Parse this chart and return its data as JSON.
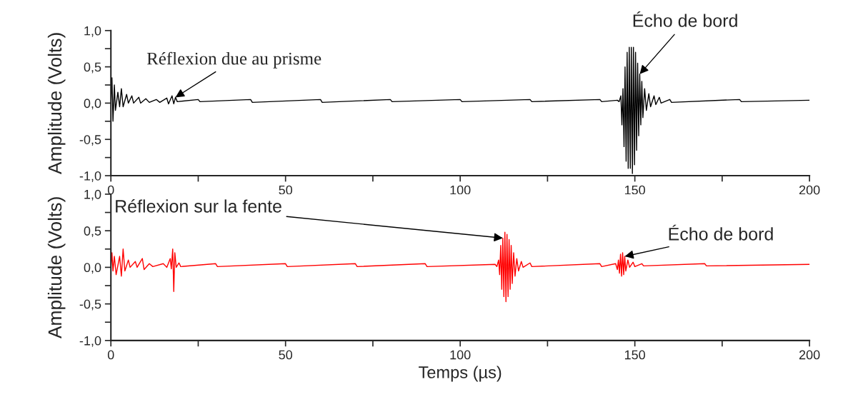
{
  "chart_data": [
    {
      "type": "line",
      "ylabel": "Amplitude (Volts)",
      "xlim": [
        0,
        200
      ],
      "ylim": [
        -1.0,
        1.0
      ],
      "xticks": [
        0,
        {
          "value": 25,
          "label": null
        },
        50,
        {
          "value": 75,
          "label": null
        },
        100,
        {
          "value": 125,
          "label": null
        },
        150,
        {
          "value": 175,
          "label": null
        },
        200
      ],
      "yticks": [
        {
          "value": -1.0,
          "label": "-1,0"
        },
        {
          "value": -0.75,
          "label": null
        },
        {
          "value": -0.5,
          "label": "-0,5"
        },
        {
          "value": -0.25,
          "label": null
        },
        {
          "value": 0.0,
          "label": "0,0"
        },
        {
          "value": 0.25,
          "label": null
        },
        {
          "value": 0.5,
          "label": "0,5"
        },
        {
          "value": 0.75,
          "label": null
        },
        {
          "value": 1.0,
          "label": "1,0"
        }
      ],
      "grid": false,
      "legend": false,
      "annotations": [
        {
          "text": "Réflexion due au prisme",
          "x": 18.5,
          "y": 0.08
        },
        {
          "text": "Écho de bord",
          "x": 151.4,
          "y": 0.4
        }
      ],
      "series": [
        {
          "color": "#000000",
          "x": [
            0,
            0.3,
            0.6,
            1.0,
            1.3,
            2,
            2.5,
            3,
            3.5,
            4.5,
            5,
            6,
            6.5,
            8,
            8.5,
            10,
            11,
            13,
            14,
            16,
            16.5,
            17.5,
            18,
            18.5,
            19,
            25,
            25.5,
            40,
            40.5,
            60,
            60.5,
            80,
            80.5,
            100,
            100.5,
            120,
            120.5,
            140,
            140.5,
            145,
            145.5,
            146,
            146.3,
            146.6,
            146.9,
            147.2,
            147.5,
            147.8,
            148.1,
            148.4,
            148.7,
            149,
            149.3,
            149.6,
            149.9,
            150.2,
            150.5,
            150.8,
            151.1,
            151.4,
            151.7,
            152,
            152.3,
            152.8,
            153.3,
            154,
            154.5,
            155.5,
            156,
            157,
            157.5,
            160,
            160.5,
            180,
            180.5,
            200
          ],
          "values": [
            0.0,
            0.35,
            -0.25,
            0.25,
            -0.1,
            0.15,
            -0.05,
            0.2,
            -0.05,
            0.12,
            0.0,
            0.1,
            0.0,
            0.08,
            0.0,
            0.06,
            0.01,
            0.05,
            0.01,
            0.07,
            -0.01,
            0.1,
            -0.01,
            0.08,
            0.02,
            0.05,
            0.02,
            0.05,
            0.01,
            0.05,
            0.01,
            0.05,
            0.02,
            0.05,
            0.02,
            0.05,
            0.02,
            0.05,
            0.02,
            0.04,
            0.02,
            0.1,
            -0.3,
            0.2,
            -0.6,
            0.5,
            -0.8,
            0.7,
            -0.9,
            0.77,
            -0.9,
            0.77,
            -0.97,
            0.77,
            -0.85,
            0.7,
            -0.65,
            0.55,
            -0.45,
            0.4,
            -0.3,
            0.3,
            -0.2,
            0.2,
            -0.1,
            0.13,
            -0.05,
            0.1,
            -0.02,
            0.08,
            0.0,
            0.05,
            0.01,
            0.05,
            0.02,
            0.04
          ]
        }
      ]
    },
    {
      "type": "line",
      "xlabel": "Temps (µs)",
      "ylabel": "Amplitude (Volts)",
      "xlim": [
        0,
        200
      ],
      "ylim": [
        -1.0,
        1.0
      ],
      "xticks": [
        0,
        {
          "value": 25,
          "label": null
        },
        50,
        {
          "value": 75,
          "label": null
        },
        100,
        {
          "value": 125,
          "label": null
        },
        150,
        {
          "value": 175,
          "label": null
        },
        200
      ],
      "yticks": [
        {
          "value": -1.0,
          "label": "-1,0"
        },
        {
          "value": -0.75,
          "label": null
        },
        {
          "value": -0.5,
          "label": "-0,5"
        },
        {
          "value": -0.25,
          "label": null
        },
        {
          "value": 0.0,
          "label": "0,0"
        },
        {
          "value": 0.25,
          "label": null
        },
        {
          "value": 0.5,
          "label": "0,5"
        },
        {
          "value": 0.75,
          "label": null
        },
        {
          "value": 1.0,
          "label": "1,0"
        }
      ],
      "grid": false,
      "legend": false,
      "annotations": [
        {
          "text": "Réflexion sur la fente",
          "x": 112.2,
          "y": 0.4
        },
        {
          "text": "Écho de bord",
          "x": 147.1,
          "y": 0.15
        }
      ],
      "series": [
        {
          "color": "#ff0000",
          "x": [
            0,
            0.3,
            0.6,
            1,
            1.5,
            2.5,
            3,
            3.5,
            4,
            5,
            5.5,
            7,
            7.5,
            9,
            9.5,
            11,
            12,
            15,
            16,
            17,
            17.3,
            17.7,
            18,
            18.3,
            18.7,
            19.5,
            20,
            30,
            30.5,
            50,
            50.5,
            70,
            70.5,
            90,
            90.5,
            110,
            110.5,
            111,
            111.3,
            111.6,
            111.9,
            112.2,
            112.5,
            112.8,
            113.1,
            113.4,
            113.7,
            114,
            114.3,
            114.6,
            114.9,
            115.3,
            115.7,
            116.2,
            116.7,
            117.5,
            118,
            120,
            120.5,
            140,
            140.5,
            144.5,
            145,
            145.3,
            145.6,
            145.9,
            146.2,
            146.5,
            146.8,
            147.1,
            147.4,
            148,
            148.5,
            149.5,
            150,
            152,
            152.5,
            170,
            170.5,
            200
          ],
          "values": [
            0.0,
            0.2,
            -0.05,
            0.15,
            -0.1,
            0.15,
            -0.12,
            0.25,
            -0.05,
            0.1,
            0.0,
            0.08,
            0.0,
            0.12,
            -0.03,
            0.05,
            0.01,
            0.05,
            0.0,
            0.12,
            -0.02,
            0.25,
            -0.33,
            0.2,
            0.0,
            0.06,
            0.01,
            0.05,
            0.01,
            0.05,
            0.01,
            0.05,
            0.01,
            0.05,
            0.01,
            0.04,
            0.01,
            0.1,
            -0.1,
            0.3,
            -0.3,
            0.4,
            -0.4,
            0.48,
            -0.47,
            0.45,
            -0.4,
            0.38,
            -0.3,
            0.3,
            -0.22,
            0.2,
            -0.12,
            0.12,
            -0.05,
            0.08,
            0.0,
            0.06,
            0.01,
            0.05,
            0.01,
            0.05,
            -0.03,
            0.1,
            -0.08,
            0.18,
            -0.12,
            0.2,
            -0.1,
            0.15,
            -0.05,
            0.1,
            0.0,
            0.07,
            0.01,
            0.05,
            0.02,
            0.05,
            0.02,
            0.04
          ]
        }
      ]
    }
  ]
}
